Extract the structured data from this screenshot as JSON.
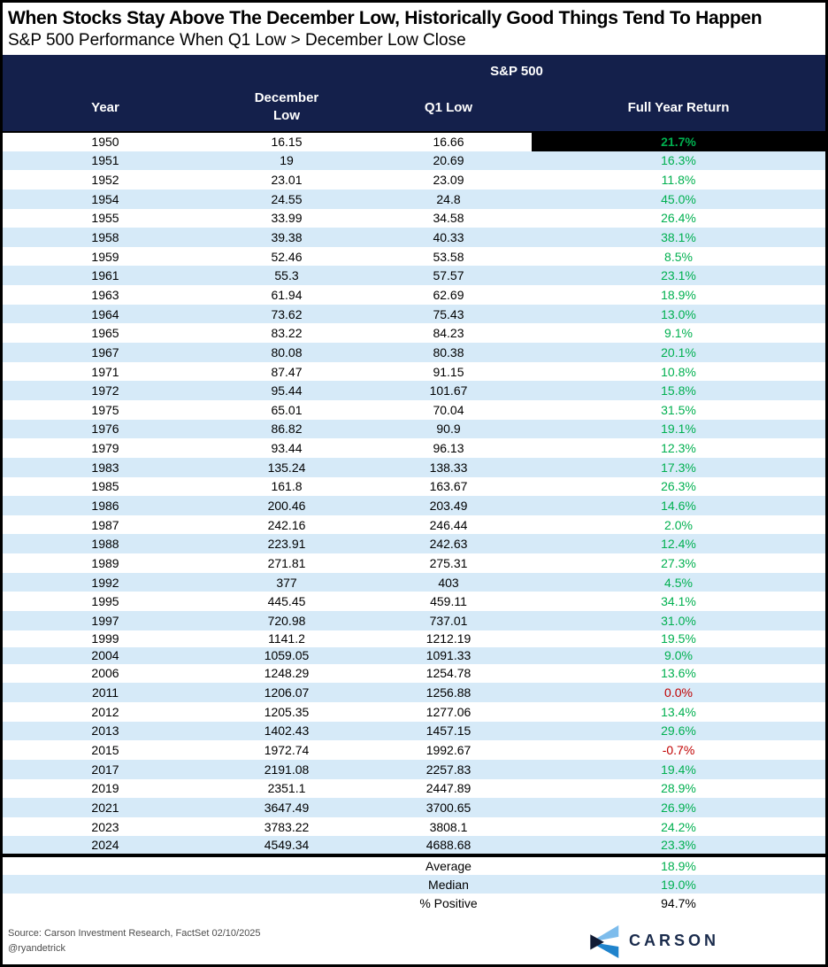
{
  "title": "When Stocks Stay Above The December Low, Historically Good Things Tend To Happen",
  "subtitle": "S&P 500 Performance When Q1 Low > December Low Close",
  "chart_data": {
    "type": "table",
    "group_header": "S&P 500",
    "columns": [
      "Year",
      "December Low",
      "Q1 Low",
      "Full Year Return"
    ],
    "rows": [
      {
        "year": "1950",
        "december_low": "16.15",
        "q1_low": "16.66",
        "full_year_return": "21.7%",
        "negative": false,
        "highlighted": true
      },
      {
        "year": "1951",
        "december_low": "19",
        "q1_low": "20.69",
        "full_year_return": "16.3%",
        "negative": false
      },
      {
        "year": "1952",
        "december_low": "23.01",
        "q1_low": "23.09",
        "full_year_return": "11.8%",
        "negative": false
      },
      {
        "year": "1954",
        "december_low": "24.55",
        "q1_low": "24.8",
        "full_year_return": "45.0%",
        "negative": false
      },
      {
        "year": "1955",
        "december_low": "33.99",
        "q1_low": "34.58",
        "full_year_return": "26.4%",
        "negative": false
      },
      {
        "year": "1958",
        "december_low": "39.38",
        "q1_low": "40.33",
        "full_year_return": "38.1%",
        "negative": false
      },
      {
        "year": "1959",
        "december_low": "52.46",
        "q1_low": "53.58",
        "full_year_return": "8.5%",
        "negative": false
      },
      {
        "year": "1961",
        "december_low": "55.3",
        "q1_low": "57.57",
        "full_year_return": "23.1%",
        "negative": false
      },
      {
        "year": "1963",
        "december_low": "61.94",
        "q1_low": "62.69",
        "full_year_return": "18.9%",
        "negative": false
      },
      {
        "year": "1964",
        "december_low": "73.62",
        "q1_low": "75.43",
        "full_year_return": "13.0%",
        "negative": false
      },
      {
        "year": "1965",
        "december_low": "83.22",
        "q1_low": "84.23",
        "full_year_return": "9.1%",
        "negative": false
      },
      {
        "year": "1967",
        "december_low": "80.08",
        "q1_low": "80.38",
        "full_year_return": "20.1%",
        "negative": false
      },
      {
        "year": "1971",
        "december_low": "87.47",
        "q1_low": "91.15",
        "full_year_return": "10.8%",
        "negative": false
      },
      {
        "year": "1972",
        "december_low": "95.44",
        "q1_low": "101.67",
        "full_year_return": "15.8%",
        "negative": false
      },
      {
        "year": "1975",
        "december_low": "65.01",
        "q1_low": "70.04",
        "full_year_return": "31.5%",
        "negative": false
      },
      {
        "year": "1976",
        "december_low": "86.82",
        "q1_low": "90.9",
        "full_year_return": "19.1%",
        "negative": false
      },
      {
        "year": "1979",
        "december_low": "93.44",
        "q1_low": "96.13",
        "full_year_return": "12.3%",
        "negative": false
      },
      {
        "year": "1983",
        "december_low": "135.24",
        "q1_low": "138.33",
        "full_year_return": "17.3%",
        "negative": false
      },
      {
        "year": "1985",
        "december_low": "161.8",
        "q1_low": "163.67",
        "full_year_return": "26.3%",
        "negative": false
      },
      {
        "year": "1986",
        "december_low": "200.46",
        "q1_low": "203.49",
        "full_year_return": "14.6%",
        "negative": false
      },
      {
        "year": "1987",
        "december_low": "242.16",
        "q1_low": "246.44",
        "full_year_return": "2.0%",
        "negative": false
      },
      {
        "year": "1988",
        "december_low": "223.91",
        "q1_low": "242.63",
        "full_year_return": "12.4%",
        "negative": false
      },
      {
        "year": "1989",
        "december_low": "271.81",
        "q1_low": "275.31",
        "full_year_return": "27.3%",
        "negative": false
      },
      {
        "year": "1992",
        "december_low": "377",
        "q1_low": "403",
        "full_year_return": "4.5%",
        "negative": false
      },
      {
        "year": "1995",
        "december_low": "445.45",
        "q1_low": "459.11",
        "full_year_return": "34.1%",
        "negative": false
      },
      {
        "year": "1997",
        "december_low": "720.98",
        "q1_low": "737.01",
        "full_year_return": "31.0%",
        "negative": false
      },
      {
        "year": "1999",
        "december_low": "1141.2",
        "q1_low": "1212.19",
        "full_year_return": "19.5%",
        "negative": false,
        "compact": true
      },
      {
        "year": "2004",
        "december_low": "1059.05",
        "q1_low": "1091.33",
        "full_year_return": "9.0%",
        "negative": false,
        "compact": true
      },
      {
        "year": "2006",
        "december_low": "1248.29",
        "q1_low": "1254.78",
        "full_year_return": "13.6%",
        "negative": false
      },
      {
        "year": "2011",
        "december_low": "1206.07",
        "q1_low": "1256.88",
        "full_year_return": "0.0%",
        "negative": true
      },
      {
        "year": "2012",
        "december_low": "1205.35",
        "q1_low": "1277.06",
        "full_year_return": "13.4%",
        "negative": false
      },
      {
        "year": "2013",
        "december_low": "1402.43",
        "q1_low": "1457.15",
        "full_year_return": "29.6%",
        "negative": false
      },
      {
        "year": "2015",
        "december_low": "1972.74",
        "q1_low": "1992.67",
        "full_year_return": "-0.7%",
        "negative": true
      },
      {
        "year": "2017",
        "december_low": "2191.08",
        "q1_low": "2257.83",
        "full_year_return": "19.4%",
        "negative": false
      },
      {
        "year": "2019",
        "december_low": "2351.1",
        "q1_low": "2447.89",
        "full_year_return": "28.9%",
        "negative": false
      },
      {
        "year": "2021",
        "december_low": "3647.49",
        "q1_low": "3700.65",
        "full_year_return": "26.9%",
        "negative": false
      },
      {
        "year": "2023",
        "december_low": "3783.22",
        "q1_low": "3808.1",
        "full_year_return": "24.2%",
        "negative": false
      },
      {
        "year": "2024",
        "december_low": "4549.34",
        "q1_low": "4688.68",
        "full_year_return": "23.3%",
        "negative": false
      }
    ],
    "summary": [
      {
        "label": "Average",
        "value": "18.9%",
        "color": "green"
      },
      {
        "label": "Median",
        "value": "19.0%",
        "color": "green"
      },
      {
        "label": "% Positive",
        "value": "94.7%",
        "color": "black"
      }
    ]
  },
  "footer": {
    "source": "Source: Carson Investment Research, FactSet 02/10/2025",
    "handle": "@ryandetrick",
    "logo_text": "CARSON"
  },
  "colors": {
    "header_bg": "#14204B",
    "row_stripe": "#D6EAF8",
    "positive_green": "#00B050",
    "negative_red": "#C00000",
    "highlight_cell_bg": "#000000",
    "logo_navy": "#1A2B4C",
    "logo_light_blue": "#7DBCEC",
    "logo_blue": "#1F83CC"
  }
}
